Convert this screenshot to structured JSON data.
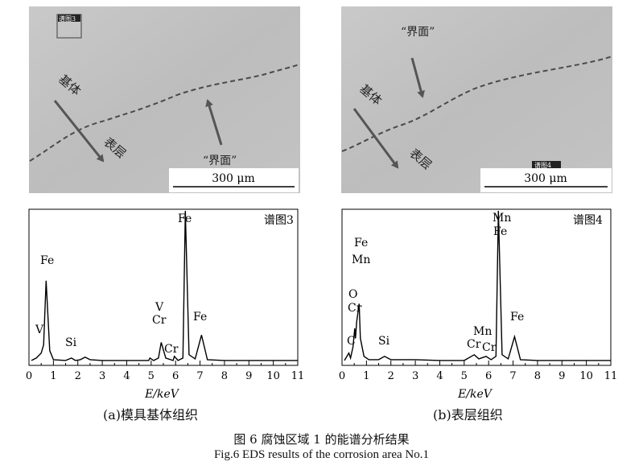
{
  "panels": [
    {
      "sem": {
        "spectrum_tag": "谱图3",
        "label_matrix": "基体",
        "label_layer": "表层",
        "label_interface": "“界面”",
        "scalebar": "300 μm"
      },
      "spectrum": {
        "title": "谱图3",
        "peak_labels": [
          "V",
          "Fe",
          "Si",
          "V",
          "Cr",
          "Cr",
          "Fe",
          "Fe"
        ],
        "xlabel": "E/keV",
        "ticks": [
          "0",
          "1",
          "2",
          "3",
          "4",
          "5",
          "6",
          "7",
          "8",
          "9",
          "10",
          "11"
        ]
      },
      "sublabel": "(a)模具基体组织"
    },
    {
      "sem": {
        "spectrum_tag": "谱图4",
        "label_matrix": "基体",
        "label_layer": "表层",
        "label_interface": "“界面”",
        "scalebar": "300 μm"
      },
      "spectrum": {
        "title": "谱图4",
        "peak_labels": [
          "C",
          "O",
          "Cr",
          "Fe",
          "Mn",
          "Si",
          "Mn",
          "Cr",
          "Cr",
          "Mn",
          "Fe",
          "Fe"
        ],
        "xlabel": "E/keV",
        "ticks": [
          "0",
          "1",
          "2",
          "3",
          "4",
          "5",
          "6",
          "7",
          "8",
          "9",
          "10",
          "11"
        ]
      },
      "sublabel": "(b)表层组织"
    }
  ],
  "caption_cn": "图 6 腐蚀区域 1 的能谱分析结果",
  "caption_en": "Fig.6 EDS results of the corrosion area No.1",
  "chart_data": [
    {
      "type": "line",
      "title": "谱图3",
      "xlabel": "E/keV",
      "ylabel": "",
      "xlim": [
        0,
        11
      ],
      "x": [
        0.1,
        0.3,
        0.5,
        0.6,
        0.7,
        0.85,
        1.0,
        1.5,
        1.74,
        1.9,
        2.1,
        2.3,
        2.5,
        3.0,
        4.0,
        4.9,
        4.95,
        5.1,
        5.3,
        5.41,
        5.6,
        5.9,
        5.95,
        6.1,
        6.3,
        6.4,
        6.55,
        6.8,
        7.06,
        7.3,
        8.0,
        9.0,
        10.0,
        11.0
      ],
      "y": [
        3,
        6,
        12,
        22,
        100,
        15,
        4,
        3,
        6,
        3,
        4,
        7,
        4,
        3,
        3,
        3,
        6,
        3,
        6,
        25,
        6,
        3,
        8,
        3,
        6,
        185,
        10,
        5,
        34,
        4,
        3,
        3,
        3,
        3
      ],
      "ylim": [
        0,
        185
      ]
    },
    {
      "type": "line",
      "title": "谱图4",
      "xlabel": "E/keV",
      "ylabel": "",
      "xlim": [
        0,
        11
      ],
      "x": [
        0.1,
        0.28,
        0.35,
        0.45,
        0.52,
        0.55,
        0.6,
        0.7,
        0.75,
        0.9,
        1.1,
        1.5,
        1.74,
        2.0,
        3.0,
        4.0,
        5.0,
        5.41,
        5.6,
        5.9,
        6.0,
        6.1,
        6.3,
        6.4,
        6.55,
        6.8,
        7.06,
        7.3,
        8.0,
        9.0,
        10.0,
        11.0
      ],
      "y": [
        3,
        12,
        6,
        20,
        42,
        30,
        50,
        72,
        30,
        8,
        4,
        4,
        8,
        4,
        4,
        3,
        3,
        10,
        5,
        8,
        6,
        4,
        8,
        185,
        10,
        5,
        32,
        4,
        3,
        3,
        3,
        3
      ],
      "ylim": [
        0,
        185
      ]
    }
  ]
}
